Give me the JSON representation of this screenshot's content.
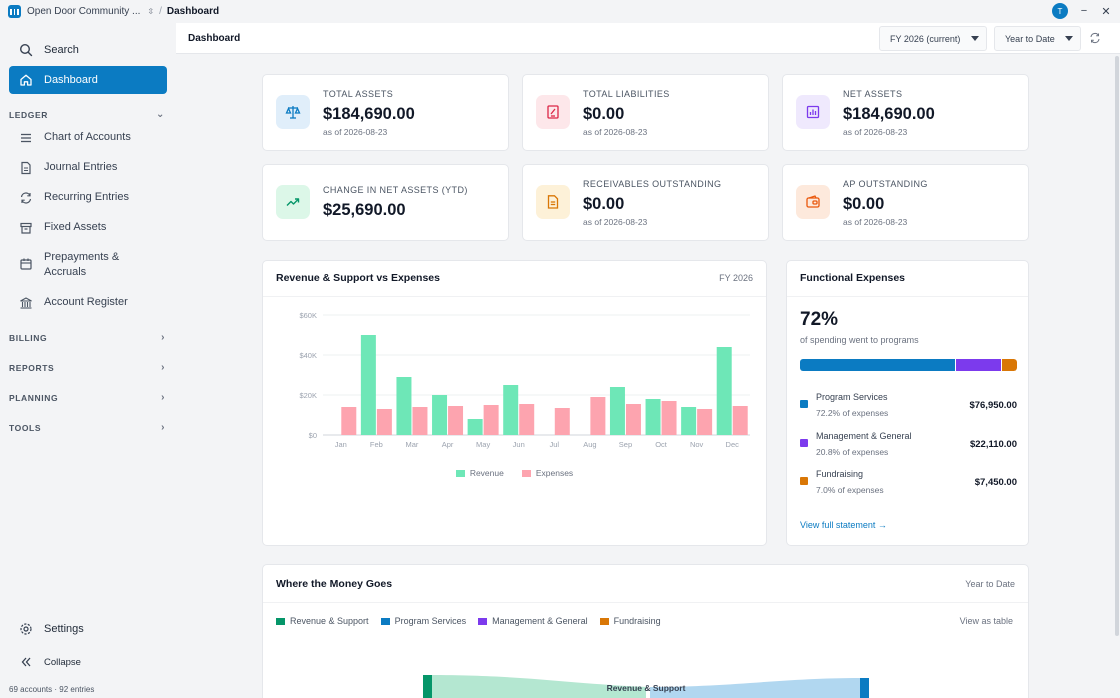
{
  "titlebar": {
    "org_name": "Open Door Community ...",
    "separator": "/",
    "page": "Dashboard",
    "avatar_initial": "T",
    "minimize": "−",
    "close": "✕"
  },
  "sidebar": {
    "search": "Search",
    "dashboard": "Dashboard",
    "ledger_heading": "LEDGER",
    "ledger_items": [
      {
        "label": "Chart of Accounts",
        "icon": "list-icon"
      },
      {
        "label": "Journal Entries",
        "icon": "document-icon"
      },
      {
        "label": "Recurring Entries",
        "icon": "recurring-icon"
      },
      {
        "label": "Fixed Assets",
        "icon": "box-icon"
      },
      {
        "label": "Prepayments &",
        "label2": "Accruals",
        "icon": "calendar-icon"
      },
      {
        "label": "Account Register",
        "icon": "bank-icon"
      }
    ],
    "billing_heading": "BILLING",
    "reports_heading": "REPORTS",
    "planning_heading": "PLANNING",
    "tools_heading": "TOOLS",
    "settings": "Settings",
    "collapse": "Collapse",
    "status": "69 accounts · 92 entries"
  },
  "topbar": {
    "title": "Dashboard",
    "fiscal_year": "FY 2026 (current)",
    "period": "Year to Date"
  },
  "kpis": [
    {
      "label": "TOTAL ASSETS",
      "value": "$184,690.00",
      "sub": "as of 2026-08-23",
      "icon": "scale-icon",
      "bg": "#e0eefa",
      "fg": "#0b7bc2"
    },
    {
      "label": "TOTAL LIABILITIES",
      "value": "$0.00",
      "sub": "as of 2026-08-23",
      "icon": "receipt-icon",
      "bg": "#fde7ea",
      "fg": "#dc2646"
    },
    {
      "label": "NET ASSETS",
      "value": "$184,690.00",
      "sub": "as of 2026-08-23",
      "icon": "bar-chart-icon",
      "bg": "#efe9fd",
      "fg": "#7c3aed"
    },
    {
      "label": "CHANGE IN NET ASSETS (YTD)",
      "value": "$25,690.00",
      "sub": "",
      "icon": "trend-up-icon",
      "bg": "#dcf7e8",
      "fg": "#059669"
    },
    {
      "label": "RECEIVABLES OUTSTANDING",
      "value": "$0.00",
      "sub": "as of 2026-08-23",
      "icon": "invoice-icon",
      "bg": "#fdf1d8",
      "fg": "#d97706"
    },
    {
      "label": "AP OUTSTANDING",
      "value": "$0.00",
      "sub": "as of 2026-08-23",
      "icon": "wallet-icon",
      "bg": "#fde9dc",
      "fg": "#ea580c"
    }
  ],
  "revenue_chart": {
    "title": "Revenue & Support vs Expenses",
    "period": "FY 2026"
  },
  "chart_data": {
    "type": "bar",
    "categories": [
      "Jan",
      "Feb",
      "Mar",
      "Apr",
      "May",
      "Jun",
      "Jul",
      "Aug",
      "Sep",
      "Oct",
      "Nov",
      "Dec"
    ],
    "series": [
      {
        "name": "Revenue",
        "color": "#6ee7b7",
        "values": [
          0,
          50000,
          29000,
          20000,
          8000,
          25000,
          0,
          0,
          24000,
          18000,
          14000,
          44000
        ]
      },
      {
        "name": "Expenses",
        "color": "#fda4af",
        "values": [
          14000,
          13000,
          14000,
          14500,
          15000,
          15500,
          13500,
          19000,
          15500,
          17000,
          13000,
          14500
        ]
      }
    ],
    "yticks": [
      "$0",
      "$20K",
      "$40K",
      "$60K"
    ],
    "ylim": [
      0,
      60000
    ],
    "grid": true,
    "legend": "bottom"
  },
  "functional": {
    "title": "Functional Expenses",
    "headline": "72%",
    "caption": "of spending went to programs",
    "rows": [
      {
        "name": "Program Services",
        "pct": "72.2% of expenses",
        "amount": "$76,950.00",
        "share": 72.2,
        "color": "#0b7bc2"
      },
      {
        "name": "Management & General",
        "pct": "20.8% of expenses",
        "amount": "$22,110.00",
        "share": 20.8,
        "color": "#7c3aed"
      },
      {
        "name": "Fundraising",
        "pct": "7.0% of expenses",
        "amount": "$7,450.00",
        "share": 7.0,
        "color": "#d97706"
      }
    ],
    "link": "View full statement →"
  },
  "flow": {
    "title": "Where the Money Goes",
    "period": "Year to Date",
    "legend": [
      {
        "label": "Revenue & Support",
        "color": "#059669"
      },
      {
        "label": "Program Services",
        "color": "#0b7bc2"
      },
      {
        "label": "Management & General",
        "color": "#7c3aed"
      },
      {
        "label": "Fundraising",
        "color": "#d97706"
      }
    ],
    "view_table": "View as table",
    "node_label": "Revenue & Support"
  }
}
